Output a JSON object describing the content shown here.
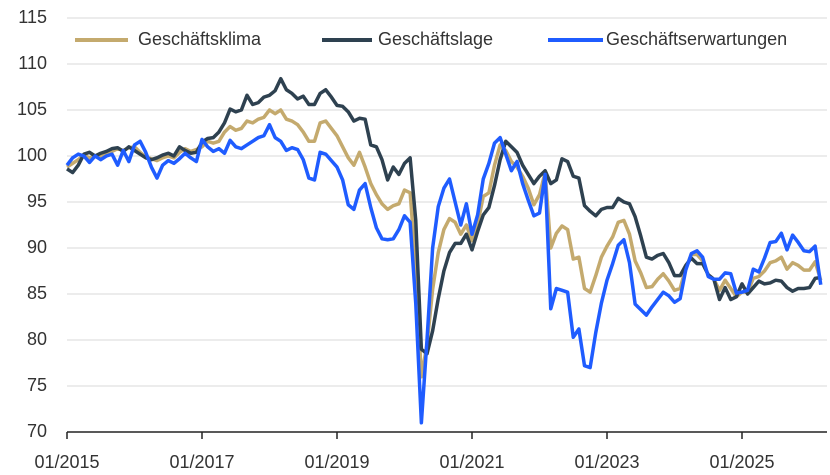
{
  "chart_data": {
    "type": "line",
    "x": [
      "01/2015",
      "02/2015",
      "03/2015",
      "04/2015",
      "05/2015",
      "06/2015",
      "07/2015",
      "08/2015",
      "09/2015",
      "10/2015",
      "11/2015",
      "12/2015",
      "01/2016",
      "02/2016",
      "03/2016",
      "04/2016",
      "05/2016",
      "06/2016",
      "07/2016",
      "08/2016",
      "09/2016",
      "10/2016",
      "11/2016",
      "12/2016",
      "01/2017",
      "02/2017",
      "03/2017",
      "04/2017",
      "05/2017",
      "06/2017",
      "07/2017",
      "08/2017",
      "09/2017",
      "10/2017",
      "11/2017",
      "12/2017",
      "01/2018",
      "02/2018",
      "03/2018",
      "04/2018",
      "05/2018",
      "06/2018",
      "07/2018",
      "08/2018",
      "09/2018",
      "10/2018",
      "11/2018",
      "12/2018",
      "01/2019",
      "02/2019",
      "03/2019",
      "04/2019",
      "05/2019",
      "06/2019",
      "07/2019",
      "08/2019",
      "09/2019",
      "10/2019",
      "11/2019",
      "12/2019",
      "01/2020",
      "02/2020",
      "03/2020",
      "04/2020",
      "05/2020",
      "06/2020",
      "07/2020",
      "08/2020",
      "09/2020",
      "10/2020",
      "11/2020",
      "12/2020",
      "01/2021",
      "02/2021",
      "03/2021",
      "04/2021",
      "05/2021",
      "06/2021",
      "07/2021",
      "08/2021",
      "09/2021",
      "10/2021",
      "11/2021",
      "12/2021",
      "01/2022",
      "02/2022",
      "03/2022",
      "04/2022",
      "05/2022",
      "06/2022",
      "07/2022",
      "08/2022",
      "09/2022",
      "10/2022",
      "11/2022",
      "12/2022",
      "01/2023",
      "02/2023",
      "03/2023",
      "04/2023",
      "05/2023",
      "06/2023",
      "07/2023",
      "08/2023",
      "09/2023",
      "10/2023",
      "11/2023",
      "12/2023",
      "01/2024",
      "02/2024",
      "03/2024",
      "04/2024",
      "05/2024",
      "06/2024",
      "07/2024",
      "08/2024",
      "09/2024",
      "10/2024",
      "11/2024",
      "12/2024",
      "01/2025",
      "02/2025",
      "03/2025",
      "04/2025",
      "05/2025",
      "06/2025",
      "07/2025",
      "08/2025",
      "09/2025",
      "10/2025",
      "11/2025",
      "12/2025",
      "01/2026",
      "02/2026",
      "03/2026"
    ],
    "series": [
      {
        "name": "Geschäftsklima",
        "color": "#c4aa6e",
        "values": [
          98.8,
          99.2,
          99.6,
          100.1,
          99.8,
          100.0,
          99.9,
          100.3,
          100.5,
          100.8,
          100.6,
          100.9,
          101.0,
          100.4,
          99.9,
          99.7,
          99.5,
          99.8,
          100.0,
          99.8,
          100.4,
          100.8,
          100.5,
          100.7,
          101.0,
          101.6,
          101.4,
          101.6,
          102.6,
          103.2,
          102.8,
          103.0,
          103.8,
          103.6,
          104.0,
          104.2,
          105.0,
          104.6,
          105.0,
          104.0,
          103.8,
          103.4,
          102.6,
          101.6,
          101.6,
          103.6,
          103.8,
          103.0,
          102.2,
          101.0,
          99.8,
          99.0,
          100.4,
          98.8,
          97.0,
          95.8,
          94.8,
          94.2,
          94.6,
          94.8,
          96.3,
          96.0,
          88.0,
          76.0,
          79.5,
          85.5,
          89.5,
          92.0,
          93.2,
          92.8,
          91.5,
          92.5,
          90.8,
          92.6,
          95.6,
          96.0,
          99.0,
          101.2,
          100.6,
          99.4,
          98.8,
          97.8,
          96.5,
          94.7,
          95.8,
          98.2,
          90.0,
          91.6,
          92.4,
          92.0,
          88.8,
          89.0,
          85.6,
          85.2,
          87.0,
          89.0,
          90.2,
          91.2,
          92.8,
          93.0,
          91.5,
          88.6,
          87.3,
          85.7,
          85.8,
          86.6,
          87.2,
          86.4,
          85.4,
          85.6,
          87.8,
          89.3,
          89.3,
          88.6,
          87.0,
          86.6,
          85.4,
          86.5,
          85.6,
          84.7,
          85.2,
          85.2,
          86.7,
          86.9,
          87.5,
          88.4,
          88.6,
          89.0,
          87.7,
          88.4,
          88.1,
          87.6,
          87.6,
          88.5,
          86.5
        ]
      },
      {
        "name": "Geschäftslage",
        "color": "#2e4150",
        "values": [
          98.6,
          98.2,
          99.0,
          100.2,
          100.4,
          100.0,
          100.3,
          100.5,
          100.8,
          100.9,
          100.5,
          101.0,
          100.6,
          100.2,
          99.8,
          99.6,
          99.8,
          100.1,
          100.3,
          100.0,
          101.0,
          100.6,
          100.3,
          100.4,
          101.5,
          101.9,
          102.0,
          102.6,
          103.6,
          105.1,
          104.8,
          105.0,
          106.6,
          105.6,
          105.8,
          106.4,
          106.6,
          107.1,
          108.4,
          107.2,
          106.8,
          106.2,
          106.5,
          105.6,
          105.6,
          106.8,
          107.2,
          106.4,
          105.5,
          105.4,
          104.8,
          103.8,
          104.1,
          104.0,
          101.2,
          101.0,
          99.6,
          97.4,
          98.8,
          98.0,
          99.2,
          99.8,
          93.0,
          79.0,
          78.5,
          81.0,
          84.5,
          87.5,
          89.5,
          90.5,
          90.5,
          91.5,
          89.8,
          91.8,
          93.6,
          94.4,
          96.8,
          99.6,
          101.6,
          101.0,
          100.4,
          99.0,
          98.0,
          97.0,
          97.8,
          98.4,
          97.0,
          97.4,
          99.7,
          99.4,
          97.8,
          97.6,
          94.6,
          94.0,
          93.5,
          94.2,
          94.4,
          94.4,
          95.4,
          95.0,
          94.8,
          93.4,
          91.3,
          89.0,
          88.8,
          89.2,
          89.4,
          88.4,
          87.0,
          87.0,
          88.1,
          88.9,
          88.3,
          88.3,
          87.1,
          86.6,
          84.4,
          85.7,
          84.4,
          84.7,
          86.1,
          85.0,
          85.7,
          86.4,
          86.1,
          86.2,
          86.5,
          86.4,
          85.7,
          85.3,
          85.6,
          85.6,
          85.7,
          86.7,
          86.8
        ]
      },
      {
        "name": "Geschäftserwartungen",
        "color": "#1f5cff",
        "values": [
          99.0,
          99.8,
          100.2,
          100.0,
          99.3,
          100.0,
          99.6,
          100.0,
          100.2,
          99.0,
          100.6,
          99.4,
          101.2,
          101.6,
          100.4,
          98.8,
          97.6,
          99.0,
          99.5,
          99.2,
          99.7,
          100.3,
          99.8,
          99.4,
          101.8,
          101.0,
          100.5,
          100.8,
          100.3,
          101.7,
          101.0,
          100.8,
          101.2,
          101.6,
          102.0,
          102.2,
          103.4,
          102.0,
          101.6,
          100.6,
          100.9,
          100.7,
          99.6,
          97.6,
          97.4,
          100.4,
          100.2,
          99.5,
          98.8,
          97.4,
          94.7,
          94.2,
          96.3,
          97.0,
          94.4,
          92.2,
          91.0,
          90.9,
          91.0,
          92.0,
          93.5,
          92.8,
          84.0,
          71.0,
          80.0,
          90.0,
          94.5,
          96.5,
          97.5,
          95.0,
          92.5,
          94.8,
          91.5,
          93.6,
          97.5,
          99.2,
          101.4,
          102.0,
          100.2,
          98.4,
          99.4,
          97.0,
          95.2,
          93.5,
          93.8,
          98.0,
          83.4,
          85.6,
          85.4,
          85.2,
          80.3,
          81.2,
          77.2,
          77.0,
          80.8,
          84.0,
          86.5,
          88.3,
          90.3,
          90.9,
          88.4,
          83.9,
          83.3,
          82.7,
          83.6,
          84.4,
          85.2,
          84.8,
          84.1,
          84.5,
          87.6,
          89.4,
          89.7,
          89.0,
          86.9,
          86.6,
          86.6,
          87.3,
          87.2,
          85.1,
          85.2,
          85.4,
          87.7,
          87.4,
          88.9,
          90.6,
          90.7,
          91.6,
          89.8,
          91.4,
          90.6,
          89.7,
          89.6,
          90.2,
          86.0
        ]
      }
    ],
    "ylim": [
      70,
      115
    ],
    "yticks": [
      70,
      75,
      80,
      85,
      90,
      95,
      100,
      105,
      110,
      115
    ],
    "xticks": [
      "01/2015",
      "01/2017",
      "01/2019",
      "01/2021",
      "01/2023",
      "01/2025"
    ],
    "grid": true,
    "legend": "top"
  }
}
